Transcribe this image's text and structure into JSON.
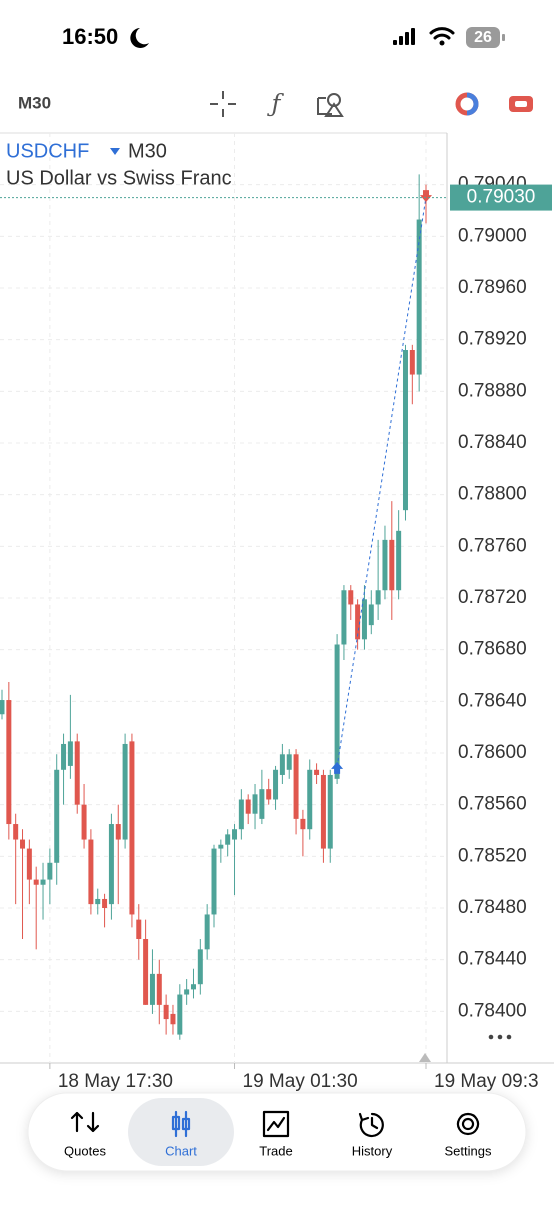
{
  "status": {
    "time": "16:50",
    "battery": "26"
  },
  "toolbar": {
    "timeframe": "M30"
  },
  "chart_data": {
    "type": "candlestick",
    "symbol": "USDCHF",
    "timeframe": "M30",
    "subtitle": "US Dollar vs Swiss Franc",
    "categories": [
      null,
      null,
      null,
      null,
      null,
      null,
      null,
      "18 May 17:30",
      null,
      null,
      null,
      null,
      null,
      null,
      null,
      null,
      null,
      null,
      null,
      null,
      null,
      null,
      null,
      null,
      null,
      null,
      null,
      null,
      null,
      null,
      null,
      null,
      null,
      null,
      "19 May 01:30",
      null,
      null,
      null,
      null,
      null,
      null,
      null,
      null,
      null,
      null,
      null,
      null,
      null,
      null,
      null,
      null,
      null,
      null,
      null,
      null,
      null,
      null,
      null,
      null,
      null,
      null,
      null,
      "19 May 09:3"
    ],
    "open": [
      0.7863,
      0.78641,
      0.78545,
      0.78533,
      0.78526,
      0.78502,
      0.78498,
      0.78502,
      0.78515,
      0.78587,
      0.7859,
      0.78609,
      0.7856,
      0.78533,
      0.78483,
      0.78487,
      0.78483,
      0.78545,
      0.78533,
      0.78609,
      0.78471,
      0.78456,
      0.78405,
      0.78429,
      0.78405,
      0.78398,
      0.78382,
      0.78413,
      0.78417,
      0.78421,
      0.78448,
      0.78475,
      0.78526,
      0.78529,
      0.78533,
      0.78541,
      0.78564,
      0.78553,
      0.78549,
      0.78572,
      0.78564,
      0.78583,
      0.78587,
      0.78599,
      0.78549,
      0.78541,
      0.78587,
      0.78583,
      0.78526,
      0.7858,
      0.78684,
      0.78726,
      0.78715,
      0.78688,
      0.78699,
      0.78715,
      0.78726,
      0.78765,
      0.78726,
      0.78788,
      0.78912,
      0.78893,
      0.79035
    ],
    "high": [
      0.78649,
      0.78655,
      0.78553,
      0.78541,
      0.78533,
      0.78512,
      0.78515,
      0.78526,
      0.78599,
      0.78615,
      0.78645,
      0.78615,
      0.78576,
      0.78541,
      0.78495,
      0.78491,
      0.78553,
      0.7856,
      0.78615,
      0.78615,
      0.78483,
      0.78471,
      0.78448,
      0.7844,
      0.78413,
      0.78405,
      0.78421,
      0.78425,
      0.78433,
      0.78456,
      0.78483,
      0.78529,
      0.78533,
      0.78541,
      0.78545,
      0.78572,
      0.78568,
      0.78576,
      0.78587,
      0.7858,
      0.7859,
      0.78607,
      0.78603,
      0.78603,
      0.78556,
      0.78595,
      0.78592,
      0.78587,
      0.78587,
      0.78692,
      0.7873,
      0.7873,
      0.78719,
      0.7873,
      0.78726,
      0.78765,
      0.78776,
      0.78795,
      0.78788,
      0.78916,
      0.78916,
      0.79048,
      0.7904
    ],
    "low": [
      0.78626,
      0.78533,
      0.78483,
      0.78456,
      0.78483,
      0.78448,
      0.78471,
      0.78483,
      0.78498,
      0.7856,
      0.7858,
      0.78553,
      0.78526,
      0.78475,
      0.78475,
      0.78465,
      0.78471,
      0.78483,
      0.78526,
      0.78465,
      0.7844,
      0.78405,
      0.78398,
      0.7839,
      0.78382,
      0.78382,
      0.78378,
      0.78405,
      0.7841,
      0.78413,
      0.7844,
      0.78465,
      0.78515,
      0.7852,
      0.7849,
      0.78533,
      0.78545,
      0.78541,
      0.78545,
      0.7856,
      0.78556,
      0.78576,
      0.7858,
      0.78537,
      0.7852,
      0.78533,
      0.78576,
      0.78515,
      0.78515,
      0.78576,
      0.78672,
      0.78703,
      0.7868,
      0.7868,
      0.78692,
      0.78703,
      0.78719,
      0.78703,
      0.78719,
      0.7878,
      0.7887,
      0.7888,
      0.7901
    ],
    "close": [
      0.78641,
      0.78545,
      0.78533,
      0.78526,
      0.78502,
      0.78498,
      0.78502,
      0.78515,
      0.78587,
      0.78607,
      0.78609,
      0.7856,
      0.78533,
      0.78483,
      0.78487,
      0.7848,
      0.78545,
      0.78533,
      0.78607,
      0.78475,
      0.78456,
      0.78405,
      0.78429,
      0.78405,
      0.78394,
      0.7839,
      0.78413,
      0.78417,
      0.78421,
      0.78448,
      0.78475,
      0.78526,
      0.78529,
      0.78537,
      0.78541,
      0.78564,
      0.78553,
      0.78568,
      0.78572,
      0.78564,
      0.78587,
      0.78599,
      0.78599,
      0.78549,
      0.78541,
      0.78587,
      0.78583,
      0.78526,
      0.78583,
      0.78684,
      0.78726,
      0.78715,
      0.78688,
      0.78719,
      0.78715,
      0.78726,
      0.78765,
      0.78726,
      0.78772,
      0.78912,
      0.78893,
      0.79013,
      0.7903
    ],
    "up_color": "#4ea398",
    "down_color": "#e0574e",
    "current_price": {
      "value": 0.7903,
      "label": "0.79030"
    },
    "ylim": [
      0.7836,
      0.7908
    ],
    "yticks": [
      {
        "value": 0.784,
        "label": "0.78400"
      },
      {
        "value": 0.7844,
        "label": "0.78440"
      },
      {
        "value": 0.7848,
        "label": "0.78480"
      },
      {
        "value": 0.7852,
        "label": "0.78520"
      },
      {
        "value": 0.7856,
        "label": "0.78560"
      },
      {
        "value": 0.786,
        "label": "0.78600"
      },
      {
        "value": 0.7864,
        "label": "0.78640"
      },
      {
        "value": 0.7868,
        "label": "0.78680"
      },
      {
        "value": 0.7872,
        "label": "0.78720"
      },
      {
        "value": 0.7876,
        "label": "0.78760"
      },
      {
        "value": 0.788,
        "label": "0.78800"
      },
      {
        "value": 0.7884,
        "label": "0.78840"
      },
      {
        "value": 0.7888,
        "label": "0.78880"
      },
      {
        "value": 0.7892,
        "label": "0.78920"
      },
      {
        "value": 0.7896,
        "label": "0.78960"
      },
      {
        "value": 0.79,
        "label": "0.79000"
      },
      {
        "value": 0.7904,
        "label": "0.79040"
      }
    ],
    "grid": true
  },
  "nav": {
    "items": [
      "Quotes",
      "Chart",
      "Trade",
      "History",
      "Settings"
    ],
    "active": 1
  }
}
